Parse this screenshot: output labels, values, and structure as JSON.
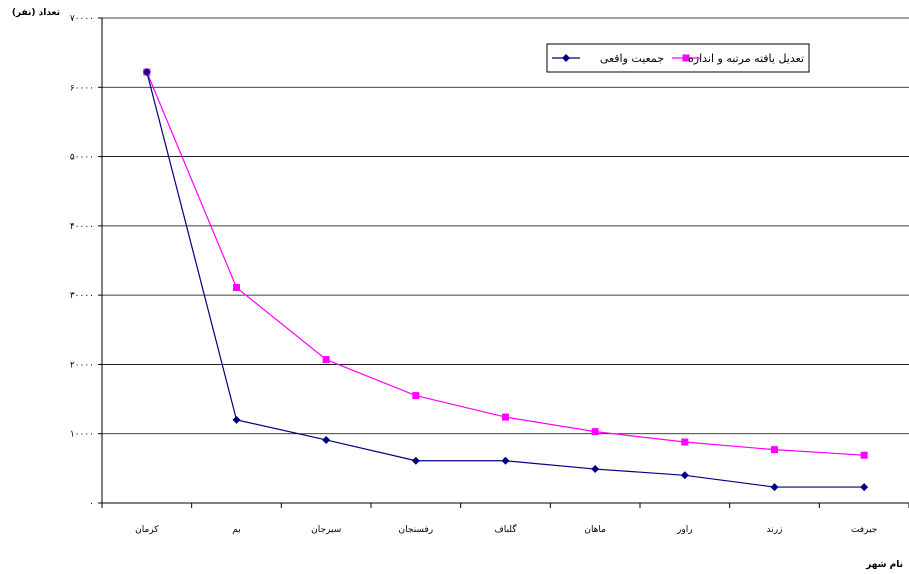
{
  "chart_data": {
    "type": "line",
    "title": "",
    "ylabel": "تعداد (نفر)",
    "xlabel": "نام شهر",
    "categories": [
      "کرمان",
      "بم",
      "سیرجان",
      "رفسنجان",
      "گلباف",
      "ماهان",
      "راور",
      "زرند",
      "جیرفت"
    ],
    "y_ticks": [
      0,
      10000,
      20000,
      30000,
      40000,
      50000,
      60000,
      70000
    ],
    "y_tick_labels": [
      "۰",
      "۱۰۰۰۰",
      "۲۰۰۰۰",
      "۳۰۰۰۰",
      "۴۰۰۰۰",
      "۵۰۰۰۰",
      "۶۰۰۰۰",
      "۷۰۰۰۰"
    ],
    "ylim": [
      0,
      70000
    ],
    "grid": true,
    "legend_position": "top-right",
    "series": [
      {
        "name": "جمعیت واقعی",
        "color": "#000080",
        "marker": "diamond",
        "values": [
          62200,
          12000,
          9100,
          6100,
          6100,
          4900,
          4000,
          2300,
          2300
        ]
      },
      {
        "name": "تعدیل یافته مرتبه و اندازه",
        "color": "#FF00FF",
        "marker": "square",
        "values": [
          62200,
          31100,
          20700,
          15500,
          12400,
          10300,
          8800,
          7700,
          6900
        ]
      }
    ]
  }
}
